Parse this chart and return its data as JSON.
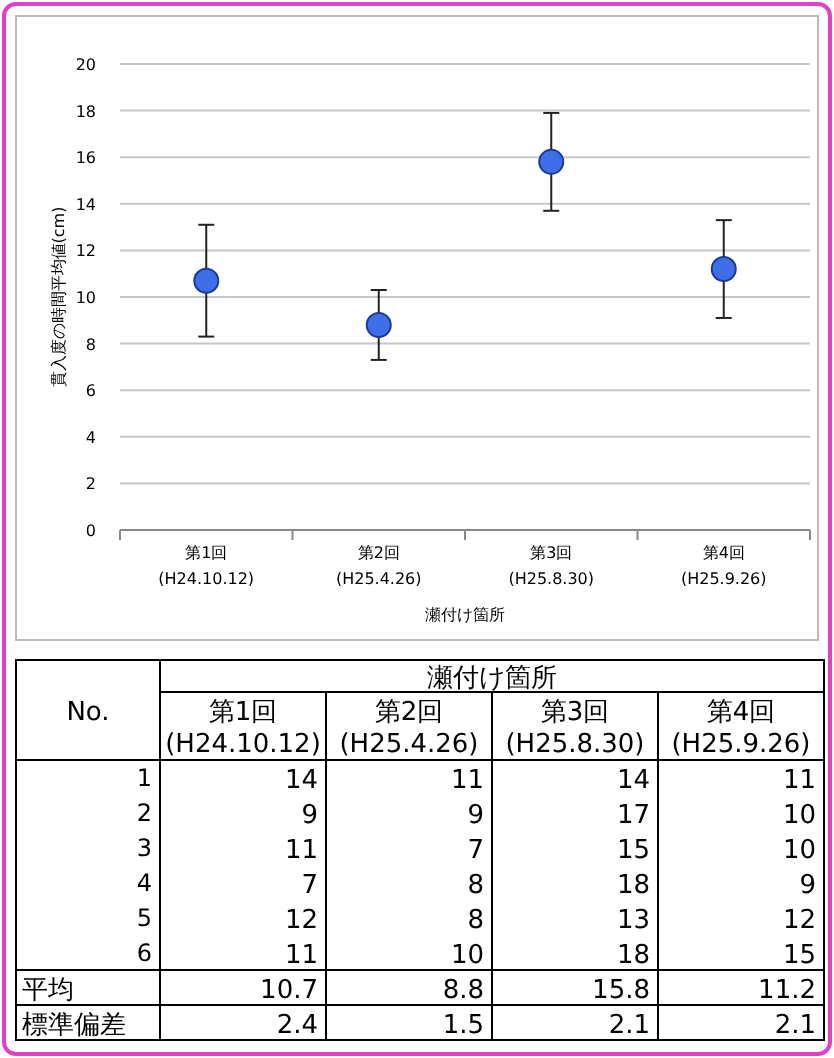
{
  "chart_data": [
    {
      "type": "scatter",
      "ylabel": "貫入度の時間平均値(cm)",
      "xlabel": "瀬付け箇所",
      "categories": [
        "第1回\n(H24.10.12)",
        "第2回\n(H25.4.26)",
        "第3回\n(H25.8.30)",
        "第4回\n(H25.9.26)"
      ],
      "series": [
        {
          "color": "#3f6fe8",
          "values": [
            10.7,
            8.8,
            15.8,
            11.2
          ],
          "errors": [
            2.4,
            1.5,
            2.1,
            2.1
          ]
        }
      ],
      "ylim": [
        0,
        20
      ],
      "yticks": [
        0,
        2,
        4,
        6,
        8,
        10,
        12,
        14,
        16,
        18,
        20
      ],
      "grid": "y",
      "marker": "circle"
    },
    {
      "type": "heatmap",
      "title": "瀬付け箇所",
      "ylabel": "No.",
      "categories": [
        "第1回\n(H24.10.12)",
        "第2回\n(H25.4.26)",
        "第3回\n(H25.8.30)",
        "第4回\n(H25.9.26)"
      ],
      "data_labels": true,
      "y_categories": [
        "1",
        "2",
        "3",
        "4",
        "5",
        "6",
        "平均",
        "標準偏差"
      ],
      "cells": [
        [
          14,
          11,
          14,
          11
        ],
        [
          9,
          9,
          17,
          10
        ],
        [
          11,
          7,
          15,
          10
        ],
        [
          7,
          8,
          18,
          9
        ],
        [
          12,
          8,
          13,
          12
        ],
        [
          11,
          10,
          18,
          15
        ],
        [
          10.7,
          8.8,
          15.8,
          11.2
        ],
        [
          2.4,
          1.5,
          2.1,
          2.1
        ]
      ]
    }
  ]
}
